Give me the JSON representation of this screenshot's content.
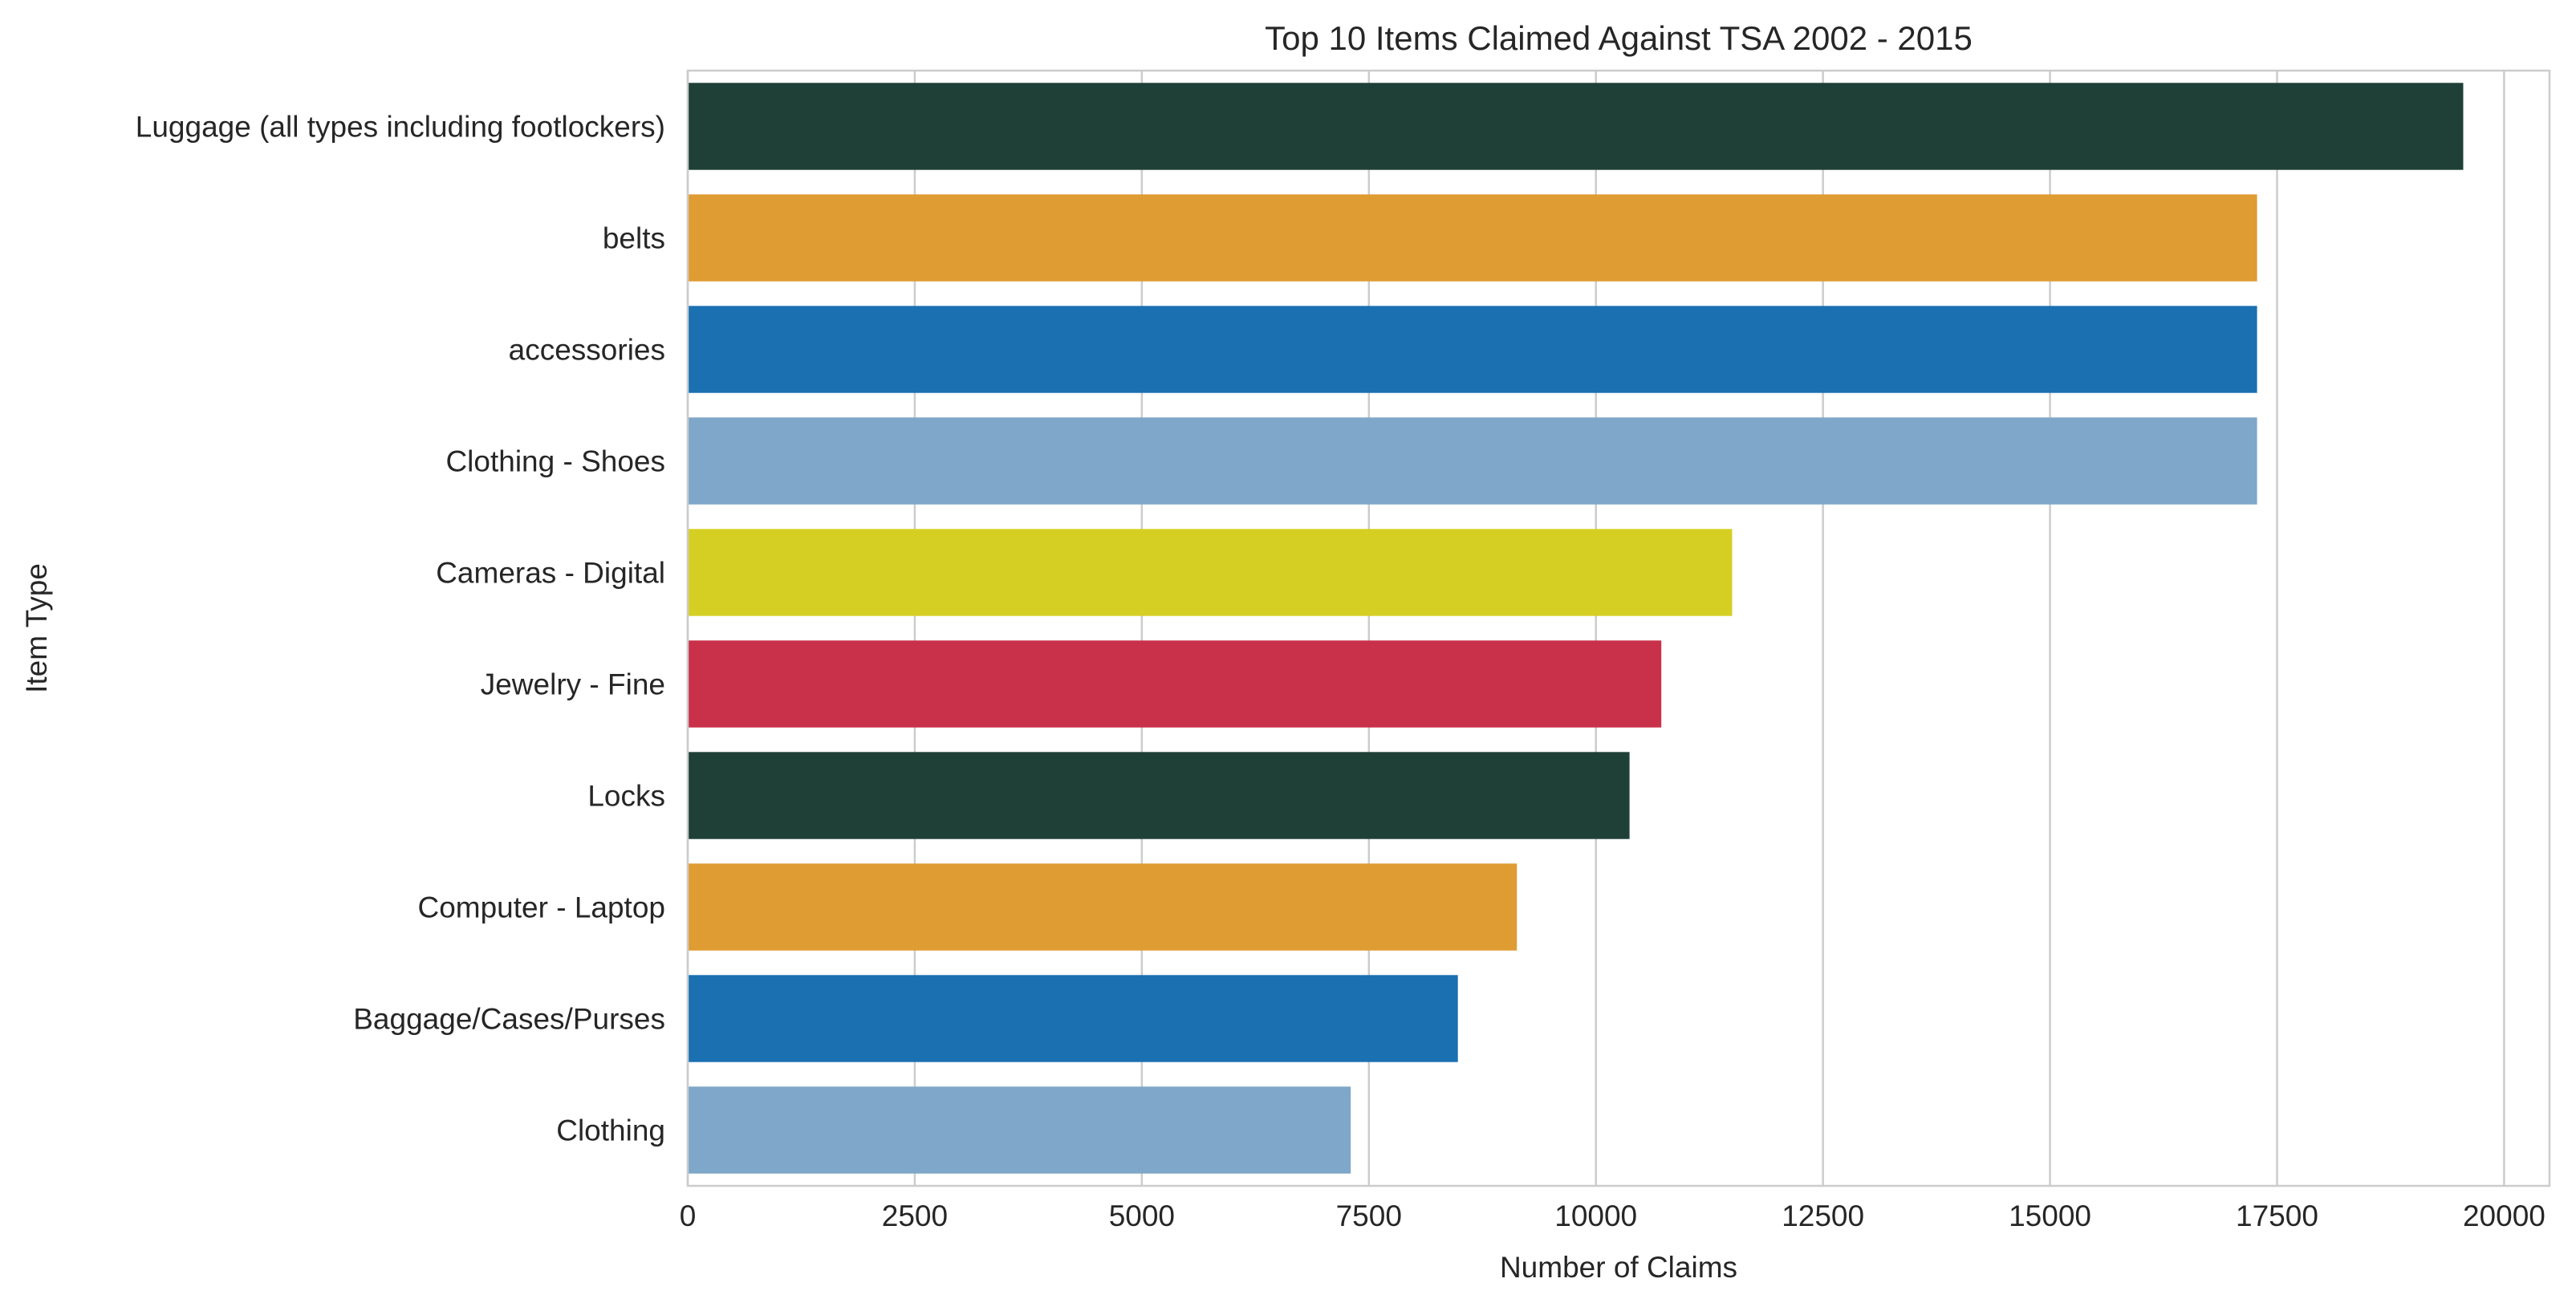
{
  "chart_data": {
    "type": "bar",
    "orientation": "horizontal",
    "title": "Top 10 Items Claimed Against TSA 2002 - 2015",
    "xlabel": "Number of Claims",
    "ylabel": "Item Type",
    "xlim": [
      0,
      20500
    ],
    "xticks": [
      0,
      2500,
      5000,
      7500,
      10000,
      12500,
      15000,
      17500,
      20000
    ],
    "xtick_labels": [
      "0",
      "2500",
      "5000",
      "7500",
      "10000",
      "12500",
      "15000",
      "17500",
      "20000"
    ],
    "grid": "vertical",
    "categories": [
      "Luggage (all types including footlockers)",
      "belts",
      "accessories",
      "Clothing - Shoes",
      "Cameras - Digital",
      "Jewelry - Fine",
      "Locks",
      "Computer - Laptop",
      "Baggage/Cases/Purses",
      "Clothing"
    ],
    "values": [
      19550,
      17280,
      17280,
      17280,
      11500,
      10720,
      10370,
      9130,
      8480,
      7300
    ],
    "colors": [
      "#1f4037",
      "#df9c32",
      "#1a70b1",
      "#7ea7c9",
      "#d6cf23",
      "#c9314a",
      "#1f4037",
      "#df9c32",
      "#1a70b1",
      "#7ea7c9"
    ]
  }
}
